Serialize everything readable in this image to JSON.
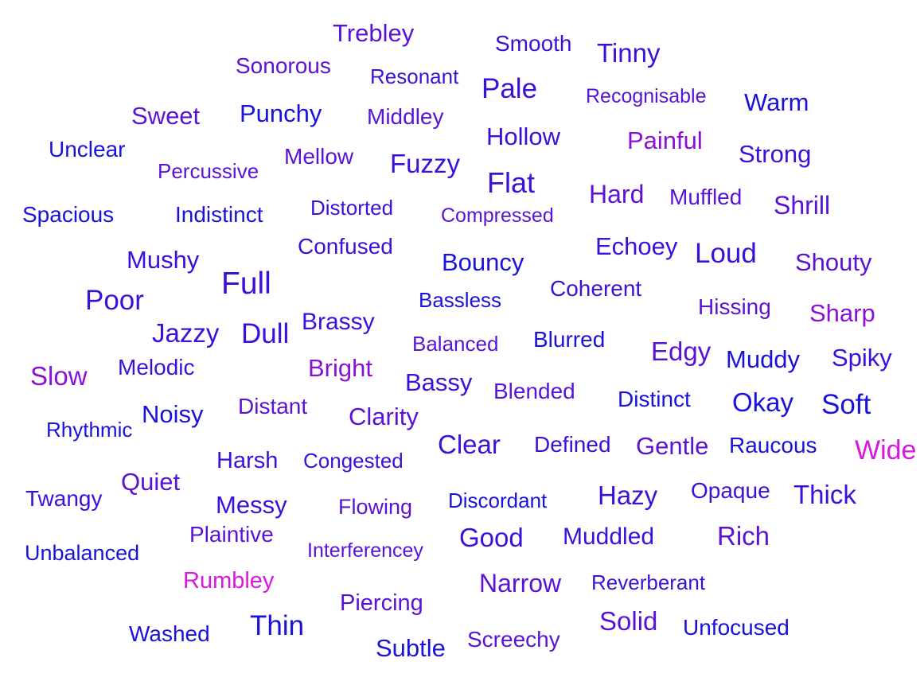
{
  "colors": {
    "blue": "#1a12dc",
    "indigo": "#3c10da",
    "violet": "#5a12d6",
    "purple": "#8a10d8",
    "magenta": "#d818dc"
  },
  "words": [
    {
      "text": "Trebley",
      "color": "violet"
    },
    {
      "text": "Smooth",
      "color": "indigo"
    },
    {
      "text": "Tinny",
      "color": "indigo"
    },
    {
      "text": "Sonorous",
      "color": "violet"
    },
    {
      "text": "Resonant",
      "color": "indigo"
    },
    {
      "text": "Pale",
      "color": "indigo"
    },
    {
      "text": "Recognisable",
      "color": "violet"
    },
    {
      "text": "Warm",
      "color": "blue"
    },
    {
      "text": "Sweet",
      "color": "violet"
    },
    {
      "text": "Punchy",
      "color": "blue"
    },
    {
      "text": "Middley",
      "color": "violet"
    },
    {
      "text": "Hollow",
      "color": "indigo"
    },
    {
      "text": "Painful",
      "color": "purple"
    },
    {
      "text": "Unclear",
      "color": "blue"
    },
    {
      "text": "Percussive",
      "color": "violet"
    },
    {
      "text": "Mellow",
      "color": "violet"
    },
    {
      "text": "Fuzzy",
      "color": "indigo"
    },
    {
      "text": "Strong",
      "color": "indigo"
    },
    {
      "text": "Flat",
      "color": "indigo"
    },
    {
      "text": "Hard",
      "color": "violet"
    },
    {
      "text": "Muffled",
      "color": "violet"
    },
    {
      "text": "Shrill",
      "color": "violet"
    },
    {
      "text": "Spacious",
      "color": "blue"
    },
    {
      "text": "Indistinct",
      "color": "blue"
    },
    {
      "text": "Distorted",
      "color": "indigo"
    },
    {
      "text": "Compressed",
      "color": "violet"
    },
    {
      "text": "Echoey",
      "color": "indigo"
    },
    {
      "text": "Loud",
      "color": "indigo"
    },
    {
      "text": "Shouty",
      "color": "violet"
    },
    {
      "text": "Mushy",
      "color": "indigo"
    },
    {
      "text": "Confused",
      "color": "indigo"
    },
    {
      "text": "Bouncy",
      "color": "blue"
    },
    {
      "text": "Full",
      "color": "indigo"
    },
    {
      "text": "Coherent",
      "color": "indigo"
    },
    {
      "text": "Poor",
      "color": "indigo"
    },
    {
      "text": "Bassless",
      "color": "blue"
    },
    {
      "text": "Hissing",
      "color": "violet"
    },
    {
      "text": "Sharp",
      "color": "purple"
    },
    {
      "text": "Brassy",
      "color": "indigo"
    },
    {
      "text": "Jazzy",
      "color": "indigo"
    },
    {
      "text": "Dull",
      "color": "indigo"
    },
    {
      "text": "Balanced",
      "color": "violet"
    },
    {
      "text": "Blurred",
      "color": "blue"
    },
    {
      "text": "Edgy",
      "color": "violet"
    },
    {
      "text": "Muddy",
      "color": "blue"
    },
    {
      "text": "Spiky",
      "color": "indigo"
    },
    {
      "text": "Slow",
      "color": "purple"
    },
    {
      "text": "Melodic",
      "color": "indigo"
    },
    {
      "text": "Bright",
      "color": "purple"
    },
    {
      "text": "Bassy",
      "color": "indigo"
    },
    {
      "text": "Blended",
      "color": "violet"
    },
    {
      "text": "Distinct",
      "color": "blue"
    },
    {
      "text": "Okay",
      "color": "blue"
    },
    {
      "text": "Soft",
      "color": "blue"
    },
    {
      "text": "Noisy",
      "color": "blue"
    },
    {
      "text": "Distant",
      "color": "violet"
    },
    {
      "text": "Clarity",
      "color": "violet"
    },
    {
      "text": "Rhythmic",
      "color": "blue"
    },
    {
      "text": "Clear",
      "color": "indigo"
    },
    {
      "text": "Defined",
      "color": "indigo"
    },
    {
      "text": "Gentle",
      "color": "violet"
    },
    {
      "text": "Raucous",
      "color": "blue"
    },
    {
      "text": "Wide",
      "color": "magenta"
    },
    {
      "text": "Harsh",
      "color": "indigo"
    },
    {
      "text": "Congested",
      "color": "indigo"
    },
    {
      "text": "Quiet",
      "color": "violet"
    },
    {
      "text": "Twangy",
      "color": "indigo"
    },
    {
      "text": "Hazy",
      "color": "indigo"
    },
    {
      "text": "Opaque",
      "color": "indigo"
    },
    {
      "text": "Thick",
      "color": "indigo"
    },
    {
      "text": "Messy",
      "color": "indigo"
    },
    {
      "text": "Flowing",
      "color": "violet"
    },
    {
      "text": "Discordant",
      "color": "blue"
    },
    {
      "text": "Plaintive",
      "color": "violet"
    },
    {
      "text": "Good",
      "color": "indigo"
    },
    {
      "text": "Muddled",
      "color": "indigo"
    },
    {
      "text": "Rich",
      "color": "violet"
    },
    {
      "text": "Unbalanced",
      "color": "blue"
    },
    {
      "text": "Interferencey",
      "color": "violet"
    },
    {
      "text": "Rumbley",
      "color": "magenta"
    },
    {
      "text": "Narrow",
      "color": "violet"
    },
    {
      "text": "Reverberant",
      "color": "indigo"
    },
    {
      "text": "Piercing",
      "color": "violet"
    },
    {
      "text": "Solid",
      "color": "violet"
    },
    {
      "text": "Thin",
      "color": "blue"
    },
    {
      "text": "Unfocused",
      "color": "blue"
    },
    {
      "text": "Washed",
      "color": "blue"
    },
    {
      "text": "Subtle",
      "color": "blue"
    },
    {
      "text": "Screechy",
      "color": "violet"
    }
  ]
}
